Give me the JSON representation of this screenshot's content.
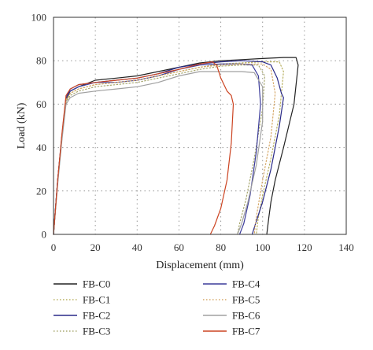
{
  "chart_data": {
    "type": "line",
    "title": "",
    "xlabel": "Displacement (mm)",
    "ylabel": "Load (kN)",
    "xlim": [
      0,
      140
    ],
    "ylim": [
      0,
      100
    ],
    "xticks": [
      0,
      20,
      40,
      60,
      80,
      100,
      120,
      140
    ],
    "yticks": [
      0,
      20,
      40,
      60,
      80,
      100
    ],
    "grid": true,
    "legend_position": "bottom",
    "series": [
      {
        "name": "FB-C0",
        "color": "#222222",
        "dash": "solid",
        "x": [
          0,
          2,
          4,
          6,
          8,
          12,
          20,
          30,
          40,
          50,
          60,
          70,
          80,
          90,
          100,
          110,
          116,
          117,
          115,
          110,
          106,
          104,
          103,
          102
        ],
        "y": [
          0,
          25,
          45,
          62,
          66,
          68,
          71,
          72,
          73,
          75,
          77,
          79,
          80,
          80.5,
          81,
          81.5,
          81.5,
          78,
          60,
          40,
          25,
          15,
          8,
          0
        ]
      },
      {
        "name": "FB-C1",
        "color": "#b8b060",
        "dash": "dot",
        "x": [
          0,
          2,
          4,
          6,
          8,
          12,
          20,
          30,
          40,
          50,
          60,
          70,
          80,
          90,
          100,
          108,
          110,
          108,
          104,
          100,
          98,
          97
        ],
        "y": [
          0,
          24,
          44,
          61,
          65,
          67,
          69,
          70,
          71,
          73,
          75,
          77,
          78.5,
          79,
          79.5,
          79.5,
          75,
          55,
          35,
          18,
          8,
          0
        ]
      },
      {
        "name": "FB-C2",
        "color": "#2a2a88",
        "dash": "solid",
        "x": [
          0,
          2,
          4,
          6,
          8,
          12,
          20,
          30,
          40,
          50,
          60,
          70,
          80,
          90,
          100,
          104,
          107,
          109,
          110,
          108,
          104,
          100,
          97,
          95
        ],
        "y": [
          0,
          25,
          45,
          63,
          67,
          69,
          70,
          71,
          72,
          74,
          77,
          78.5,
          79.5,
          80,
          79.5,
          78,
          72,
          65,
          63,
          50,
          30,
          15,
          6,
          0
        ]
      },
      {
        "name": "FB-C3",
        "color": "#a8a870",
        "dash": "dot",
        "x": [
          0,
          2,
          4,
          6,
          8,
          12,
          20,
          30,
          40,
          50,
          60,
          70,
          80,
          90,
          98,
          101,
          100,
          96,
          92,
          89,
          88
        ],
        "y": [
          0,
          24,
          44,
          61,
          64,
          66,
          68,
          69,
          70,
          72,
          74,
          76,
          77.5,
          78,
          78,
          73,
          58,
          35,
          16,
          5,
          0
        ]
      },
      {
        "name": "FB-C4",
        "color": "#3b3b9a",
        "dash": "solid",
        "x": [
          0,
          2,
          4,
          6,
          8,
          12,
          20,
          30,
          40,
          50,
          60,
          70,
          80,
          90,
          95,
          98,
          99,
          97,
          94,
          91,
          89
        ],
        "y": [
          0,
          25,
          45,
          63,
          66,
          68,
          70,
          70,
          71,
          73,
          76,
          78,
          78.5,
          78.5,
          78,
          73,
          60,
          38,
          18,
          5,
          0
        ]
      },
      {
        "name": "FB-C5",
        "color": "#d6a868",
        "dash": "dot",
        "x": [
          0,
          2,
          4,
          6,
          8,
          12,
          20,
          30,
          40,
          50,
          60,
          70,
          80,
          90,
          100,
          104,
          106,
          104,
          100,
          97,
          96
        ],
        "y": [
          0,
          24,
          44,
          62,
          65,
          67,
          69,
          70,
          71,
          73,
          75,
          77,
          78,
          78.5,
          78.5,
          76,
          65,
          45,
          25,
          8,
          0
        ]
      },
      {
        "name": "FB-C6",
        "color": "#a0a0a0",
        "dash": "solid",
        "x": [
          0,
          2,
          4,
          6,
          8,
          12,
          20,
          30,
          40,
          50,
          60,
          70,
          80,
          90,
          96,
          100,
          100,
          97,
          93,
          90,
          88
        ],
        "y": [
          0,
          23,
          43,
          60,
          63,
          65,
          66,
          67,
          68,
          70,
          73,
          75,
          75,
          75,
          74.5,
          68,
          52,
          32,
          15,
          5,
          0
        ]
      },
      {
        "name": "FB-C7",
        "color": "#cc4422",
        "dash": "solid",
        "x": [
          0,
          2,
          4,
          6,
          8,
          12,
          20,
          30,
          40,
          50,
          60,
          70,
          76,
          78,
          80,
          83,
          85,
          86,
          85,
          83,
          80,
          77,
          75
        ],
        "y": [
          0,
          25,
          46,
          64,
          67,
          69,
          70,
          71,
          72,
          74,
          76,
          78.5,
          79.5,
          78,
          72,
          66,
          64,
          60,
          42,
          25,
          12,
          4,
          0
        ]
      }
    ]
  }
}
